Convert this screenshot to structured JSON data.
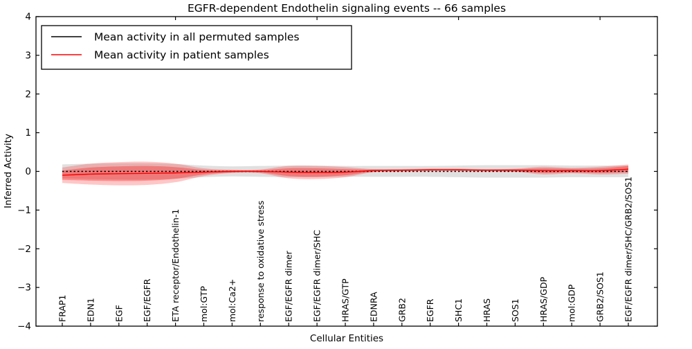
{
  "title": "EGFR-dependent Endothelin signaling events -- 66 samples",
  "axes": {
    "ylabel": "Inferred Activity",
    "xlabel": "Cellular Entities",
    "ylim": [
      -4,
      4
    ],
    "yticks": [
      4,
      3,
      2,
      1,
      0,
      -1,
      -2,
      -3,
      -4
    ],
    "ytick_labels": [
      "4",
      "3",
      "2",
      "1",
      "0",
      "−1",
      "−2",
      "−3",
      "−4"
    ],
    "grid": false
  },
  "legend": {
    "position": "upper-left",
    "items": [
      {
        "label": "Mean activity in all permuted samples",
        "color": "#000000"
      },
      {
        "label": "Mean activity in patient samples",
        "color": "#ff0000"
      }
    ]
  },
  "chart_data": {
    "type": "line",
    "title": "EGFR-dependent Endothelin signaling events -- 66 samples",
    "xlabel": "Cellular Entities",
    "ylabel": "Inferred Activity",
    "ylim": [
      -4,
      4
    ],
    "legend_position": "upper-left",
    "categories": [
      "FRAP1",
      "EDN1",
      "EGF",
      "EGF/EGFR",
      "ETA receptor/Endothelin-1",
      "mol:GTP",
      "mol:Ca2+",
      "response to oxidative stress",
      "EGF/EGFR dimer",
      "EGF/EGFR dimer/SHC",
      "HRAS/GTP",
      "EDNRA",
      "GRB2",
      "EGFR",
      "SHC1",
      "HRAS",
      "SOS1",
      "HRAS/GDP",
      "mol:GDP",
      "GRB2/SOS1",
      "EGF/EGFR dimer/SHC/GRB2/SOS1"
    ],
    "series": [
      {
        "name": "Mean activity in all permuted samples",
        "color": "#000000",
        "line_style": "dashed",
        "values": [
          0.0,
          0.0,
          0.0,
          0.0,
          0.0,
          0.0,
          0.0,
          0.0,
          0.0,
          0.0,
          0.0,
          0.0,
          0.0,
          0.0,
          0.0,
          0.0,
          0.0,
          0.0,
          0.0,
          0.0,
          0.0
        ]
      },
      {
        "name": "Mean activity in patient samples",
        "color": "#ff0000",
        "line_style": "solid",
        "values": [
          -0.1,
          -0.07,
          -0.06,
          -0.05,
          -0.04,
          -0.02,
          0.0,
          0.0,
          -0.02,
          -0.03,
          -0.02,
          0.02,
          0.03,
          0.04,
          0.04,
          0.03,
          0.03,
          0.02,
          0.02,
          0.02,
          0.06
        ]
      }
    ],
    "bands": [
      {
        "name": "permuted-sample-spread",
        "center_series": 0,
        "color": "#000000",
        "opacity": 0.12,
        "half_widths": [
          0.18,
          0.2,
          0.21,
          0.21,
          0.19,
          0.15,
          0.13,
          0.14,
          0.15,
          0.15,
          0.14,
          0.14,
          0.14,
          0.14,
          0.15,
          0.16,
          0.16,
          0.16,
          0.15,
          0.15,
          0.15
        ]
      },
      {
        "name": "patient-sample-spread-outer",
        "center_series": 1,
        "color": "#ff0000",
        "opacity": 0.22,
        "half_widths": [
          0.2,
          0.27,
          0.3,
          0.3,
          0.24,
          0.1,
          0.04,
          0.05,
          0.16,
          0.17,
          0.13,
          0.04,
          0.03,
          0.03,
          0.03,
          0.03,
          0.04,
          0.1,
          0.07,
          0.1,
          0.12
        ]
      },
      {
        "name": "patient-sample-spread-inner",
        "center_series": 1,
        "color": "#ff0000",
        "opacity": 0.3,
        "half_widths": [
          0.12,
          0.17,
          0.19,
          0.19,
          0.15,
          0.06,
          0.03,
          0.03,
          0.1,
          0.11,
          0.08,
          0.03,
          0.02,
          0.02,
          0.02,
          0.02,
          0.03,
          0.06,
          0.05,
          0.06,
          0.08
        ]
      }
    ],
    "top_axis_tick_indices": [
      4,
      9,
      14,
      19
    ]
  }
}
